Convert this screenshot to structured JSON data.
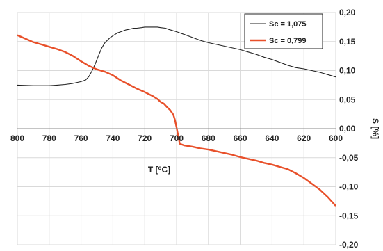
{
  "chart_data": {
    "type": "line",
    "xlabel": "T [oC]",
    "ylabel": "S [%]",
    "xlim": [
      800,
      600
    ],
    "ylim": [
      -0.2,
      0.2
    ],
    "x_ticks": [
      "800",
      "780",
      "760",
      "740",
      "720",
      "700",
      "680",
      "660",
      "640",
      "620",
      "600"
    ],
    "y_ticks": [
      "0,20",
      "0,15",
      "0,10",
      "0,05",
      "0,00",
      "-0,05",
      "-0,10",
      "-0,15",
      "-0,20"
    ],
    "grid": true,
    "legend_position": "top-right",
    "series": [
      {
        "name": "Sc = 1,075",
        "color": "#222222",
        "x": [
          800,
          790,
          780,
          775,
          770,
          765,
          760,
          757,
          755,
          753,
          751,
          749,
          747,
          745,
          742,
          740,
          737,
          735,
          732,
          730,
          727,
          725,
          722,
          720,
          717,
          715,
          712,
          710,
          707,
          705,
          700,
          695,
          690,
          685,
          680,
          675,
          670,
          665,
          660,
          655,
          650,
          645,
          640,
          635,
          630,
          625,
          620,
          615,
          610,
          605,
          600
        ],
        "y": [
          0.075,
          0.074,
          0.074,
          0.075,
          0.076,
          0.078,
          0.081,
          0.084,
          0.09,
          0.1,
          0.112,
          0.126,
          0.139,
          0.148,
          0.156,
          0.16,
          0.165,
          0.167,
          0.17,
          0.171,
          0.173,
          0.173,
          0.174,
          0.175,
          0.175,
          0.175,
          0.175,
          0.174,
          0.173,
          0.171,
          0.167,
          0.162,
          0.157,
          0.152,
          0.148,
          0.145,
          0.142,
          0.139,
          0.136,
          0.132,
          0.128,
          0.123,
          0.119,
          0.114,
          0.109,
          0.105,
          0.103,
          0.1,
          0.097,
          0.093,
          0.089
        ]
      },
      {
        "name": "Sc = 0,799",
        "color": "#e8502a",
        "x": [
          800,
          795,
          790,
          785,
          780,
          775,
          770,
          765,
          760,
          755,
          750,
          745,
          740,
          735,
          730,
          725,
          720,
          715,
          712,
          710,
          708,
          706,
          704,
          702,
          701,
          700,
          699,
          698,
          695,
          690,
          685,
          680,
          675,
          670,
          665,
          660,
          655,
          650,
          645,
          640,
          635,
          630,
          625,
          620,
          615,
          610,
          605,
          600
        ],
        "y": [
          0.161,
          0.155,
          0.149,
          0.145,
          0.141,
          0.137,
          0.132,
          0.125,
          0.116,
          0.108,
          0.102,
          0.098,
          0.092,
          0.083,
          0.076,
          0.069,
          0.063,
          0.056,
          0.051,
          0.046,
          0.043,
          0.037,
          0.032,
          0.024,
          0.015,
          0.002,
          -0.012,
          -0.026,
          -0.029,
          -0.031,
          -0.034,
          -0.036,
          -0.039,
          -0.042,
          -0.045,
          -0.049,
          -0.052,
          -0.055,
          -0.059,
          -0.062,
          -0.066,
          -0.07,
          -0.077,
          -0.085,
          -0.095,
          -0.105,
          -0.118,
          -0.133
        ]
      }
    ]
  }
}
